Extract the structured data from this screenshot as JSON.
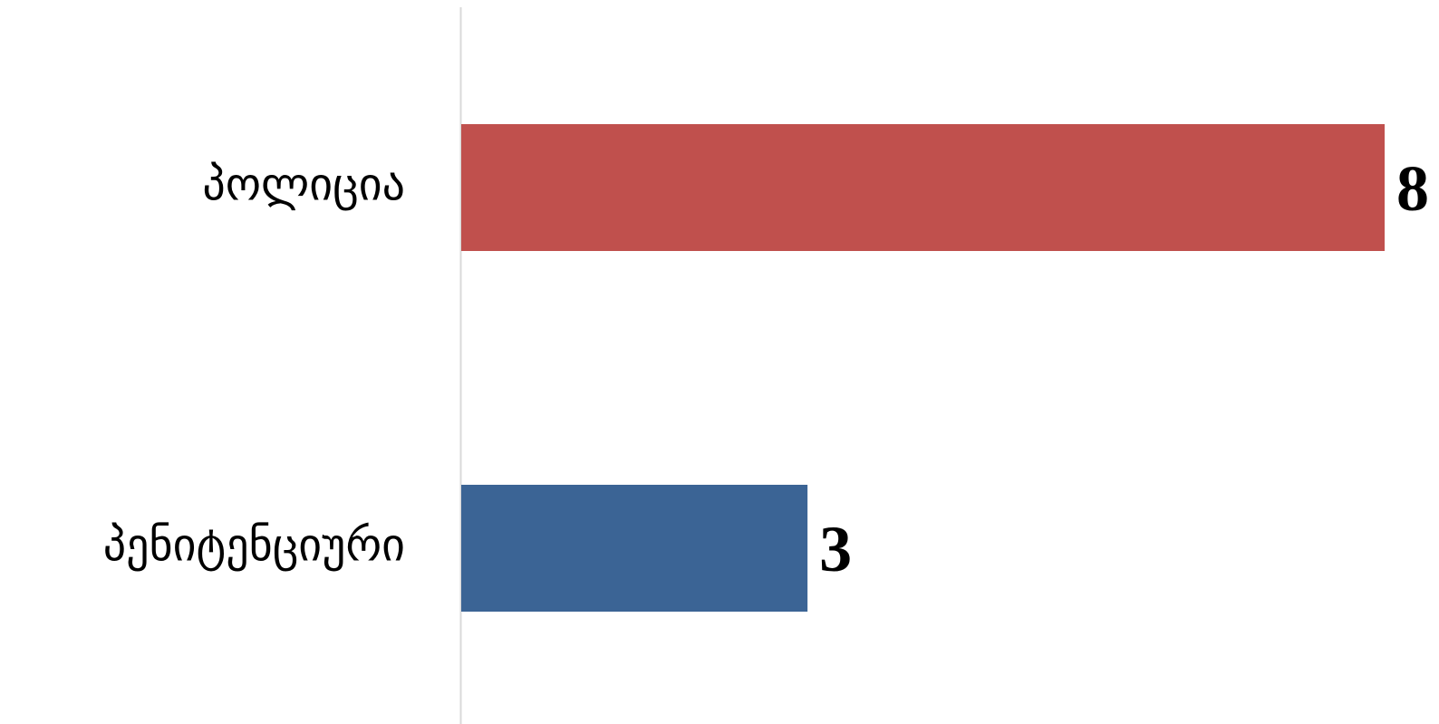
{
  "chart_data": {
    "type": "bar",
    "orientation": "horizontal",
    "categories": [
      "პოლიცია",
      "პენიტენციური"
    ],
    "values": [
      8,
      3
    ],
    "colors": [
      "#C0504D",
      "#3B6495"
    ],
    "xlim": [
      0,
      8
    ],
    "grid": false,
    "legend": "none",
    "data_labels": true,
    "axis_line_color": "#D9D9D9"
  }
}
